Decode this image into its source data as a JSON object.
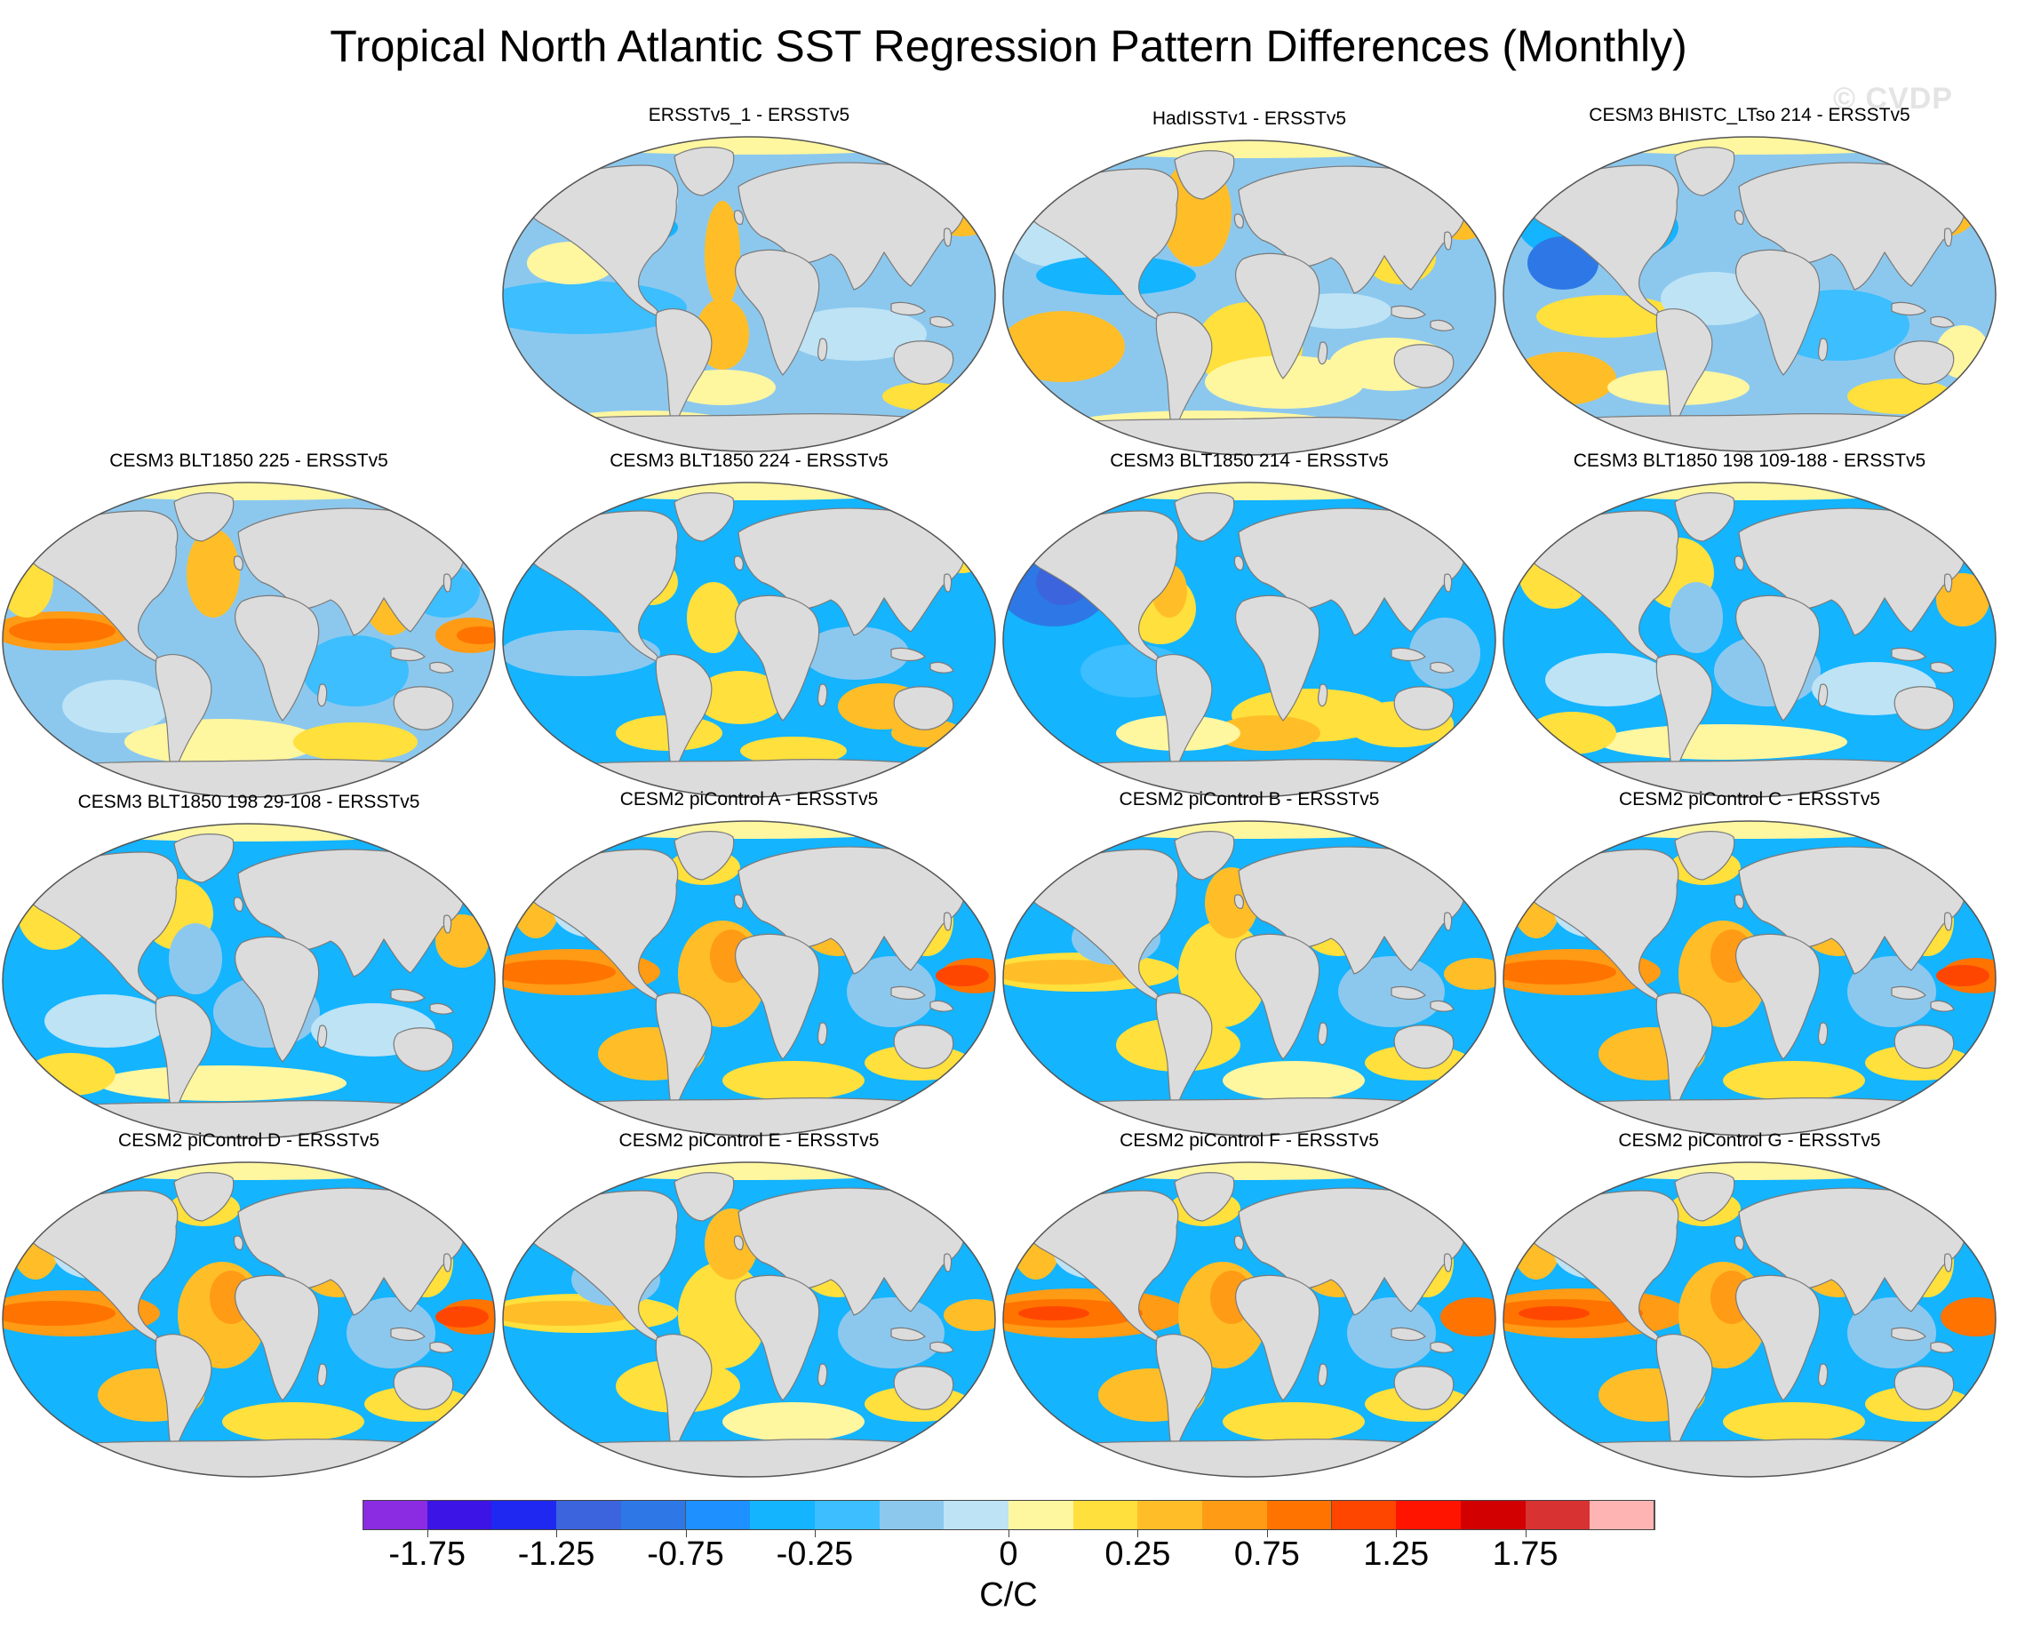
{
  "title": "Tropical North Atlantic SST Regression Pattern Differences (Monthly)",
  "watermark": "© CVDP",
  "colorbar": {
    "units": "C/C",
    "colors": [
      "#8b2be2",
      "#3c14e6",
      "#1e28f0",
      "#3c64dc",
      "#2d78e6",
      "#1e90ff",
      "#14b4ff",
      "#3cbeff",
      "#8cc8ee",
      "#bde3f5",
      "#fff6a0",
      "#ffe03c",
      "#ffbe28",
      "#ff9b14",
      "#ff7300",
      "#ff4600",
      "#ff1400",
      "#d20000",
      "#d83232",
      "#ffb4b4"
    ],
    "labels": [
      "-1.75",
      "-1.25",
      "-0.75",
      "-0.25",
      "0",
      "0.25",
      "0.75",
      "1.25",
      "1.75"
    ]
  },
  "panels": [
    {
      "title": "ERSSTv5_1 - ERSSTv5",
      "pattern": "weak_mixed"
    },
    {
      "title": "HadISSTv1 - ERSSTv5",
      "pattern": "weak_warm_south"
    },
    {
      "title": "CESM3 BHISTC_LTso 214 - ERSSTv5",
      "pattern": "blue_atlantic"
    },
    {
      "title": "CESM3 BLT1850 225 - ERSSTv5",
      "pattern": "warm_pacific"
    },
    {
      "title": "CESM3 BLT1850 224 - ERSSTv5",
      "pattern": "blue_mixed"
    },
    {
      "title": "CESM3 BLT1850 214 - ERSSTv5",
      "pattern": "deep_blue"
    },
    {
      "title": "CESM3 BLT1850 198 109-188 - ERSSTv5",
      "pattern": "blue_natl_hot"
    },
    {
      "title": "CESM3 BLT1850 198 29-108 - ERSSTv5",
      "pattern": "blue_natl_hot"
    },
    {
      "title": "CESM2 piControl A - ERSSTv5",
      "pattern": "enso_warm"
    },
    {
      "title": "CESM2 piControl B - ERSSTv5",
      "pattern": "enso_moderate"
    },
    {
      "title": "CESM2 piControl C - ERSSTv5",
      "pattern": "enso_warm"
    },
    {
      "title": "CESM2 piControl D - ERSSTv5",
      "pattern": "enso_warm"
    },
    {
      "title": "CESM2 piControl E - ERSSTv5",
      "pattern": "enso_moderate"
    },
    {
      "title": "CESM2 piControl F - ERSSTv5",
      "pattern": "enso_strong"
    },
    {
      "title": "CESM2 piControl G - ERSSTv5",
      "pattern": "enso_strong"
    }
  ]
}
